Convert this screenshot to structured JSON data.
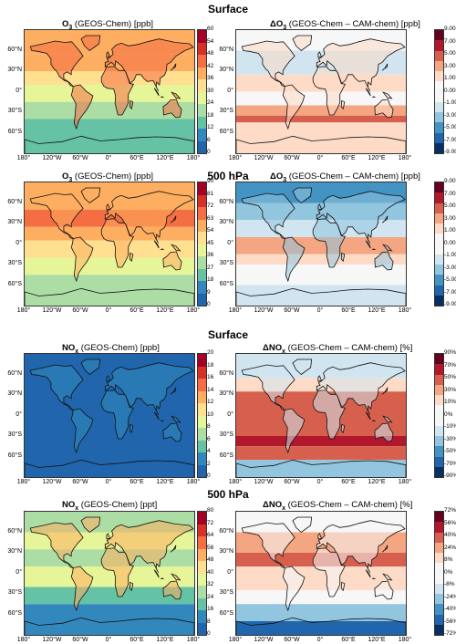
{
  "row_titles": {
    "r1": "Surface",
    "r2": "500 hPa",
    "r3": "Surface",
    "r4": "500 hPa"
  },
  "panels": {
    "p1": {
      "sym": "O",
      "sub": "3",
      "rest": " (GEOS-Chem) [ppb]"
    },
    "p2": {
      "sym": "ΔO",
      "sub": "3",
      "rest": " (GEOS-Chem – CAM-chem) [ppb]"
    },
    "p3": {
      "sym": "O",
      "sub": "3",
      "rest": " (GEOS-Chem) [ppb]"
    },
    "p4": {
      "sym": "ΔO",
      "sub": "3",
      "rest": " (GEOS-Chem – CAM-chem) [ppb]"
    },
    "p5": {
      "sym": "NO",
      "sub": "x",
      "rest": " (GEOS-Chem) [ppb]"
    },
    "p6": {
      "sym": "ΔNO",
      "sub": "x",
      "rest": " (GEOS-Chem – CAM-chem) [%]"
    },
    "p7": {
      "sym": "NO",
      "sub": "x",
      "rest": " (GEOS-Chem) [ppt]"
    },
    "p8": {
      "sym": "ΔNO",
      "sub": "x",
      "rest": " (GEOS-Chem – CAM-chem) [%]"
    }
  },
  "lat_labels": [
    "60°N",
    "30°N",
    "0°",
    "30°S",
    "60°S"
  ],
  "lon_labels_row12": [
    "180°",
    "120°W",
    "60°W",
    "0°",
    "60°E",
    "120°E",
    "180°"
  ],
  "lon_labels_row34": [
    "180°",
    "120°W",
    "60°W",
    "0°",
    "60°E",
    "120°E",
    "180°"
  ],
  "colorbars": {
    "c1": [
      "60",
      "54",
      "48",
      "42",
      "36",
      "30",
      "24",
      "18",
      "12",
      "6",
      "0"
    ],
    "c2": [
      "9.00",
      "7.00",
      "5.00",
      "3.00",
      "1.00",
      "0.00",
      "-1.00",
      "-3.00",
      "-5.00",
      "-7.00",
      "-9.00"
    ],
    "c3": [
      "90",
      "81",
      "72",
      "63",
      "54",
      "45",
      "36",
      "27",
      "18",
      "9",
      "0"
    ],
    "c4": [
      "9.00",
      "7.00",
      "5.00",
      "3.00",
      "1.00",
      "0.00",
      "-1.00",
      "-3.00",
      "-5.00",
      "-7.00",
      "-9.00"
    ],
    "c5": [
      "20",
      "18",
      "16",
      "14",
      "12",
      "10",
      "8",
      "6",
      "4",
      "2",
      "0"
    ],
    "c6": [
      "90%",
      "70%",
      "50%",
      "30%",
      "10%",
      "0%",
      "-10%",
      "-30%",
      "-50%",
      "-70%",
      "-90%"
    ],
    "c7": [
      "80",
      "72",
      "64",
      "56",
      "48",
      "40",
      "32",
      "24",
      "16",
      "8",
      "0"
    ],
    "c8": [
      "72%",
      "56%",
      "40%",
      "24%",
      "8%",
      "0%",
      "-8%",
      "-24%",
      "-40%",
      "-56%",
      "-72%"
    ]
  },
  "colors": {
    "abs_ramp": [
      "#a50026",
      "#d73027",
      "#f46d43",
      "#fdae61",
      "#fee090",
      "#e6f598",
      "#abdda4",
      "#66c2a5",
      "#3288bd",
      "#2166ac"
    ],
    "diff_ramp": [
      "#67001f",
      "#b2182b",
      "#d6604d",
      "#f4a582",
      "#fddbc7",
      "#f7f7f7",
      "#f7f7f7",
      "#d1e5f0",
      "#92c5de",
      "#4393c3",
      "#2166ac",
      "#053061"
    ],
    "coast": "#111111"
  }
}
